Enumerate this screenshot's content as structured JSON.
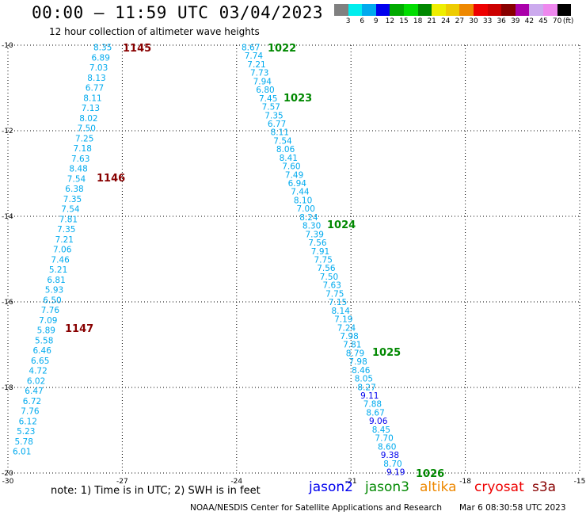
{
  "title": "00:00 – 11:59 UTC 03/04/2023",
  "subtitle": "12 hour collection of altimeter wave heights",
  "colorbar": {
    "unit": "(ft)",
    "labels": [
      "3",
      "6",
      "9",
      "12",
      "15",
      "18",
      "21",
      "24",
      "27",
      "30",
      "33",
      "36",
      "39",
      "42",
      "45",
      "70"
    ],
    "colors": [
      "#808080",
      "#00eeee",
      "#00aaee",
      "#0000ee",
      "#00aa00",
      "#00dd00",
      "#008800",
      "#eeee00",
      "#eecc00",
      "#ee8800",
      "#ee0000",
      "#cc0000",
      "#880000",
      "#aa00aa",
      "#ccaaee",
      "#ee88ee",
      "#000000"
    ]
  },
  "map": {
    "lon_range": [
      -30,
      -15
    ],
    "lat_range": [
      -20,
      -10
    ],
    "lon_ticks": [
      "-30",
      "-27",
      "-24",
      "-21",
      "-18",
      "-15"
    ],
    "lat_ticks": [
      "-10",
      "-12",
      "-14",
      "-16",
      "-18",
      "-20"
    ],
    "grid": "dotted"
  },
  "tracks": [
    {
      "name": "track-1",
      "labels": [
        {
          "text": "1145",
          "color": "#880000"
        },
        {
          "text": "1146",
          "color": "#880000"
        },
        {
          "text": "1147",
          "color": "#880000"
        }
      ],
      "points": [
        {
          "v": "8.35",
          "c": "#00aaee"
        },
        {
          "v": "6.89",
          "c": "#00aaee"
        },
        {
          "v": "7.03",
          "c": "#00aaee"
        },
        {
          "v": "8.13",
          "c": "#00aaee"
        },
        {
          "v": "6.77",
          "c": "#00aaee"
        },
        {
          "v": "8.11",
          "c": "#00aaee"
        },
        {
          "v": "7.13",
          "c": "#00aaee"
        },
        {
          "v": "8.02",
          "c": "#00aaee"
        },
        {
          "v": "7.50",
          "c": "#00aaee"
        },
        {
          "v": "7.25",
          "c": "#00aaee"
        },
        {
          "v": "7.18",
          "c": "#00aaee"
        },
        {
          "v": "7.63",
          "c": "#00aaee"
        },
        {
          "v": "8.48",
          "c": "#00aaee"
        },
        {
          "v": "7.54",
          "c": "#00aaee"
        },
        {
          "v": "6.38",
          "c": "#00aaee"
        },
        {
          "v": "7.35",
          "c": "#00aaee"
        },
        {
          "v": "7.54",
          "c": "#00aaee"
        },
        {
          "v": "7.81",
          "c": "#00aaee"
        },
        {
          "v": "7.35",
          "c": "#00aaee"
        },
        {
          "v": "7.21",
          "c": "#00aaee"
        },
        {
          "v": "7.06",
          "c": "#00aaee"
        },
        {
          "v": "7.46",
          "c": "#00aaee"
        },
        {
          "v": "5.21",
          "c": "#00aaee"
        },
        {
          "v": "6.81",
          "c": "#00aaee"
        },
        {
          "v": "5.93",
          "c": "#00aaee"
        },
        {
          "v": "6.50",
          "c": "#00aaee"
        },
        {
          "v": "7.76",
          "c": "#00aaee"
        },
        {
          "v": "7.09",
          "c": "#00aaee"
        },
        {
          "v": "5.89",
          "c": "#00aaee"
        },
        {
          "v": "5.58",
          "c": "#00aaee"
        },
        {
          "v": "6.46",
          "c": "#00aaee"
        },
        {
          "v": "6.65",
          "c": "#00aaee"
        },
        {
          "v": "4.72",
          "c": "#00aaee"
        },
        {
          "v": "6.02",
          "c": "#00aaee"
        },
        {
          "v": "6.47",
          "c": "#00aaee"
        },
        {
          "v": "6.72",
          "c": "#00aaee"
        },
        {
          "v": "7.76",
          "c": "#00aaee"
        },
        {
          "v": "6.12",
          "c": "#00aaee"
        },
        {
          "v": "5.23",
          "c": "#00aaee"
        },
        {
          "v": "5.78",
          "c": "#00aaee"
        },
        {
          "v": "6.01",
          "c": "#00aaee"
        }
      ]
    },
    {
      "name": "track-2",
      "labels": [
        {
          "text": "1022",
          "color": "#008800"
        },
        {
          "text": "1023",
          "color": "#008800"
        },
        {
          "text": "1024",
          "color": "#008800"
        },
        {
          "text": "1025",
          "color": "#008800"
        },
        {
          "text": "1026",
          "color": "#008800"
        }
      ],
      "points": [
        {
          "v": "8.67",
          "c": "#00aaee"
        },
        {
          "v": "7.74",
          "c": "#00aaee"
        },
        {
          "v": "7.21",
          "c": "#00aaee"
        },
        {
          "v": "7.73",
          "c": "#00aaee"
        },
        {
          "v": "7.94",
          "c": "#00aaee"
        },
        {
          "v": "6.80",
          "c": "#00aaee"
        },
        {
          "v": "7.45",
          "c": "#00aaee"
        },
        {
          "v": "7.57",
          "c": "#00aaee"
        },
        {
          "v": "7.35",
          "c": "#00aaee"
        },
        {
          "v": "6.77",
          "c": "#00aaee"
        },
        {
          "v": "8.11",
          "c": "#00aaee"
        },
        {
          "v": "7.54",
          "c": "#00aaee"
        },
        {
          "v": "8.06",
          "c": "#00aaee"
        },
        {
          "v": "8.41",
          "c": "#00aaee"
        },
        {
          "v": "7.60",
          "c": "#00aaee"
        },
        {
          "v": "7.49",
          "c": "#00aaee"
        },
        {
          "v": "6.94",
          "c": "#00aaee"
        },
        {
          "v": "7.44",
          "c": "#00aaee"
        },
        {
          "v": "8.10",
          "c": "#00aaee"
        },
        {
          "v": "7.00",
          "c": "#00aaee"
        },
        {
          "v": "8.24",
          "c": "#00aaee"
        },
        {
          "v": "8.30",
          "c": "#00aaee"
        },
        {
          "v": "7.39",
          "c": "#00aaee"
        },
        {
          "v": "7.56",
          "c": "#00aaee"
        },
        {
          "v": "7.91",
          "c": "#00aaee"
        },
        {
          "v": "7.75",
          "c": "#00aaee"
        },
        {
          "v": "7.56",
          "c": "#00aaee"
        },
        {
          "v": "7.50",
          "c": "#00aaee"
        },
        {
          "v": "7.63",
          "c": "#00aaee"
        },
        {
          "v": "7.75",
          "c": "#00aaee"
        },
        {
          "v": "7.15",
          "c": "#00aaee"
        },
        {
          "v": "8.14",
          "c": "#00aaee"
        },
        {
          "v": "7.19",
          "c": "#00aaee"
        },
        {
          "v": "7.24",
          "c": "#00aaee"
        },
        {
          "v": "7.98",
          "c": "#00aaee"
        },
        {
          "v": "7.81",
          "c": "#00aaee"
        },
        {
          "v": "8.79",
          "c": "#00aaee"
        },
        {
          "v": "7.98",
          "c": "#00aaee"
        },
        {
          "v": "8.46",
          "c": "#00aaee"
        },
        {
          "v": "8.05",
          "c": "#00aaee"
        },
        {
          "v": "8.27",
          "c": "#00aaee"
        },
        {
          "v": "9.11",
          "c": "#0000ee"
        },
        {
          "v": "7.88",
          "c": "#00aaee"
        },
        {
          "v": "8.67",
          "c": "#00aaee"
        },
        {
          "v": "9.06",
          "c": "#0000ee"
        },
        {
          "v": "8.45",
          "c": "#00aaee"
        },
        {
          "v": "7.70",
          "c": "#00aaee"
        },
        {
          "v": "8.60",
          "c": "#00aaee"
        },
        {
          "v": "9.38",
          "c": "#0000ee"
        },
        {
          "v": "8.70",
          "c": "#00aaee"
        },
        {
          "v": "9.19",
          "c": "#0000ee"
        }
      ]
    }
  ],
  "note": "note:  1) Time is in UTC; 2) SWH is in feet",
  "legend": [
    {
      "name": "jason2",
      "color": "#0000ee"
    },
    {
      "name": "jason3",
      "color": "#008800"
    },
    {
      "name": "altika",
      "color": "#ee8800"
    },
    {
      "name": "cryosat",
      "color": "#ee0000"
    },
    {
      "name": "s3a",
      "color": "#880000"
    }
  ],
  "footer": {
    "credit": "NOAA/NESDIS Center for Satellite Applications and Research",
    "timestamp": "Mar  6 08:30:58 UTC 2023"
  }
}
